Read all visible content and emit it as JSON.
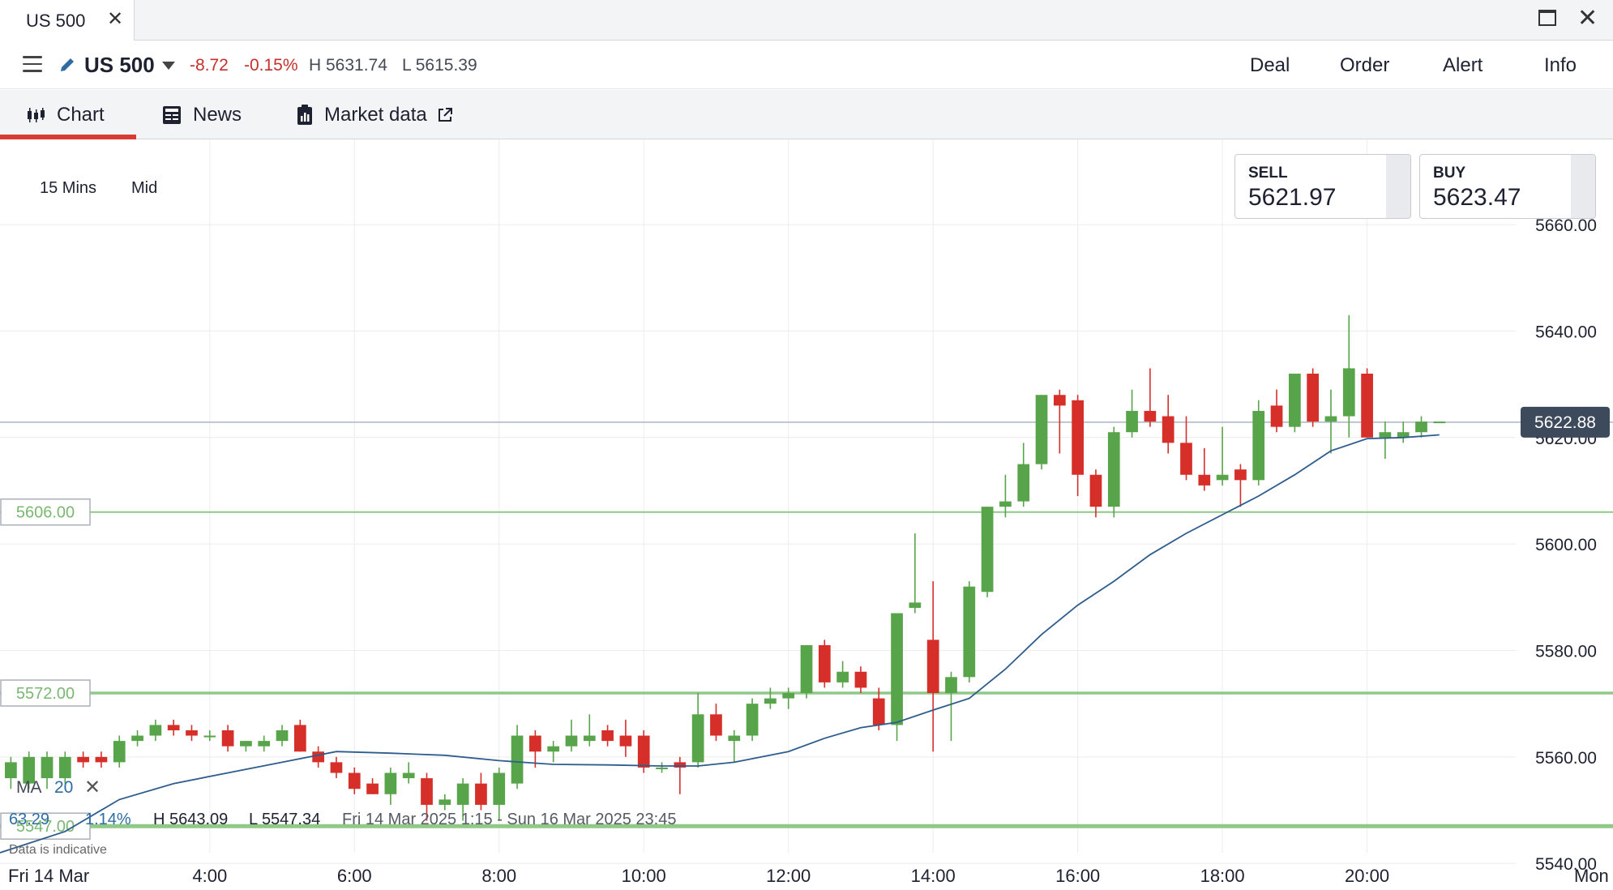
{
  "window": {
    "tab_title": "US 500",
    "close_glyph": "✕"
  },
  "header": {
    "instrument": "US 500",
    "change": "-8.72",
    "change_pct": "-0.15%",
    "high": "H 5631.74",
    "low": "L 5615.39",
    "actions": [
      "Deal",
      "Order",
      "Alert",
      "Info"
    ]
  },
  "subtabs": [
    {
      "label": "Chart",
      "icon": "candlestick-icon",
      "active": true
    },
    {
      "label": "News",
      "icon": "newspaper-icon",
      "active": false
    },
    {
      "label": "Market data",
      "icon": "clipboard-icon",
      "external_icon": "external-link-icon",
      "active": false
    }
  ],
  "toolbar": {
    "timeframe": "15 Mins",
    "price_type": "Mid"
  },
  "quotes": {
    "sell": {
      "label": "SELL",
      "price": "5621.97"
    },
    "buy": {
      "label": "BUY",
      "price": "5623.47"
    }
  },
  "indicator": {
    "label": "MA",
    "period": "20",
    "close_glyph": "✕"
  },
  "stats": {
    "value": "63.29",
    "pct": "1.14%",
    "high": "H 5643.09",
    "low": "L 5547.34",
    "range": "Fri 14 Mar 2025 1:15 - Sun 16 Mar 2025 23:45"
  },
  "disclaimer": "Data is indicative",
  "day_labels": {
    "start": "Fri 14 Mar",
    "end": "Mon"
  },
  "colors": {
    "up": "#57a44a",
    "down": "#d62f2a",
    "ma_line": "#2e5c8c",
    "level_line": "#8fc887",
    "current_tag": "#3d4a5c"
  },
  "chart_data": {
    "type": "candlestick",
    "interval": "15 Mins",
    "y_ticks": [
      "5660.00",
      "5640.00",
      "5620.00",
      "5600.00",
      "5580.00",
      "5560.00",
      "5540.00"
    ],
    "ylim": [
      5535,
      5676
    ],
    "x_ticks": [
      "4:00",
      "6:00",
      "8:00",
      "10:00",
      "12:00",
      "14:00",
      "16:00",
      "18:00",
      "20:00"
    ],
    "x_tick_hours": [
      4,
      6,
      8,
      10,
      12,
      14,
      16,
      18,
      20
    ],
    "xlim_hours": [
      1.1,
      23.4
    ],
    "current_price": "5622.88",
    "levels": [
      {
        "label": "5606.00",
        "value": 5606
      },
      {
        "label": "5572.00",
        "value": 5572
      },
      {
        "label": "5547.00",
        "value": 5547
      }
    ],
    "candles": [
      {
        "t": 1.25,
        "o": 5556,
        "h": 5560,
        "l": 5554,
        "c": 5559
      },
      {
        "t": 1.5,
        "o": 5555,
        "h": 5561,
        "l": 5554,
        "c": 5560
      },
      {
        "t": 1.75,
        "o": 5556,
        "h": 5561,
        "l": 5554,
        "c": 5560
      },
      {
        "t": 2.0,
        "o": 5556,
        "h": 5561,
        "l": 5555,
        "c": 5560
      },
      {
        "t": 2.25,
        "o": 5560,
        "h": 5561,
        "l": 5558,
        "c": 5559
      },
      {
        "t": 2.5,
        "o": 5560,
        "h": 5561,
        "l": 5558,
        "c": 5559
      },
      {
        "t": 2.75,
        "o": 5559,
        "h": 5564,
        "l": 5558,
        "c": 5563
      },
      {
        "t": 3.0,
        "o": 5563,
        "h": 5565,
        "l": 5562,
        "c": 5564
      },
      {
        "t": 3.25,
        "o": 5564,
        "h": 5567,
        "l": 5563,
        "c": 5566
      },
      {
        "t": 3.5,
        "o": 5566,
        "h": 5567,
        "l": 5564,
        "c": 5565
      },
      {
        "t": 3.75,
        "o": 5565,
        "h": 5566,
        "l": 5563,
        "c": 5564
      },
      {
        "t": 4.0,
        "o": 5564,
        "h": 5565,
        "l": 5563,
        "c": 5564
      },
      {
        "t": 4.25,
        "o": 5565,
        "h": 5566,
        "l": 5561,
        "c": 5562
      },
      {
        "t": 4.5,
        "o": 5562,
        "h": 5563,
        "l": 5561,
        "c": 5563
      },
      {
        "t": 4.75,
        "o": 5562,
        "h": 5564,
        "l": 5561,
        "c": 5563
      },
      {
        "t": 5.0,
        "o": 5563,
        "h": 5566,
        "l": 5562,
        "c": 5565
      },
      {
        "t": 5.25,
        "o": 5566,
        "h": 5567,
        "l": 5561,
        "c": 5561
      },
      {
        "t": 5.5,
        "o": 5561,
        "h": 5562,
        "l": 5558,
        "c": 5559
      },
      {
        "t": 5.75,
        "o": 5559,
        "h": 5560,
        "l": 5556,
        "c": 5557
      },
      {
        "t": 6.0,
        "o": 5557,
        "h": 5558,
        "l": 5553,
        "c": 5554
      },
      {
        "t": 6.25,
        "o": 5555,
        "h": 5556,
        "l": 5553,
        "c": 5553
      },
      {
        "t": 6.5,
        "o": 5553,
        "h": 5558,
        "l": 5551,
        "c": 5557
      },
      {
        "t": 6.75,
        "o": 5556,
        "h": 5559,
        "l": 5555,
        "c": 5557
      },
      {
        "t": 7.0,
        "o": 5556,
        "h": 5557,
        "l": 5548,
        "c": 5551
      },
      {
        "t": 7.25,
        "o": 5551,
        "h": 5553,
        "l": 5550,
        "c": 5552
      },
      {
        "t": 7.5,
        "o": 5551,
        "h": 5556,
        "l": 5548,
        "c": 5555
      },
      {
        "t": 7.75,
        "o": 5555,
        "h": 5557,
        "l": 5550,
        "c": 5551
      },
      {
        "t": 8.0,
        "o": 5551,
        "h": 5558,
        "l": 5548,
        "c": 5557
      },
      {
        "t": 8.25,
        "o": 5555,
        "h": 5566,
        "l": 5554,
        "c": 5564
      },
      {
        "t": 8.5,
        "o": 5564,
        "h": 5565,
        "l": 5558,
        "c": 5561
      },
      {
        "t": 8.75,
        "o": 5561,
        "h": 5563,
        "l": 5559,
        "c": 5562
      },
      {
        "t": 9.0,
        "o": 5562,
        "h": 5567,
        "l": 5561,
        "c": 5564
      },
      {
        "t": 9.25,
        "o": 5563,
        "h": 5568,
        "l": 5562,
        "c": 5564
      },
      {
        "t": 9.5,
        "o": 5565,
        "h": 5566,
        "l": 5562,
        "c": 5563
      },
      {
        "t": 9.75,
        "o": 5564,
        "h": 5567,
        "l": 5560,
        "c": 5562
      },
      {
        "t": 10.0,
        "o": 5564,
        "h": 5565,
        "l": 5557,
        "c": 5558
      },
      {
        "t": 10.25,
        "o": 5558,
        "h": 5559,
        "l": 5557,
        "c": 5558
      },
      {
        "t": 10.5,
        "o": 5559,
        "h": 5560,
        "l": 5553,
        "c": 5558
      },
      {
        "t": 10.75,
        "o": 5559,
        "h": 5572,
        "l": 5558,
        "c": 5568
      },
      {
        "t": 11.0,
        "o": 5568,
        "h": 5570,
        "l": 5563,
        "c": 5564
      },
      {
        "t": 11.25,
        "o": 5563,
        "h": 5565,
        "l": 5559,
        "c": 5564
      },
      {
        "t": 11.5,
        "o": 5564,
        "h": 5571,
        "l": 5563,
        "c": 5570
      },
      {
        "t": 11.75,
        "o": 5570,
        "h": 5573,
        "l": 5569,
        "c": 5571
      },
      {
        "t": 12.0,
        "o": 5571,
        "h": 5573,
        "l": 5569,
        "c": 5572
      },
      {
        "t": 12.25,
        "o": 5572,
        "h": 5581,
        "l": 5571,
        "c": 5581
      },
      {
        "t": 12.5,
        "o": 5581,
        "h": 5582,
        "l": 5573,
        "c": 5574
      },
      {
        "t": 12.75,
        "o": 5574,
        "h": 5578,
        "l": 5573,
        "c": 5576
      },
      {
        "t": 13.0,
        "o": 5576,
        "h": 5577,
        "l": 5572,
        "c": 5573
      },
      {
        "t": 13.25,
        "o": 5571,
        "h": 5573,
        "l": 5565,
        "c": 5566
      },
      {
        "t": 13.5,
        "o": 5566,
        "h": 5587,
        "l": 5563,
        "c": 5587
      },
      {
        "t": 13.75,
        "o": 5588,
        "h": 5602,
        "l": 5587,
        "c": 5589
      },
      {
        "t": 14.0,
        "o": 5582,
        "h": 5593,
        "l": 5561,
        "c": 5572
      },
      {
        "t": 14.25,
        "o": 5572,
        "h": 5576,
        "l": 5563,
        "c": 5575
      },
      {
        "t": 14.5,
        "o": 5575,
        "h": 5593,
        "l": 5574,
        "c": 5592
      },
      {
        "t": 14.75,
        "o": 5591,
        "h": 5607,
        "l": 5590,
        "c": 5607
      },
      {
        "t": 15.0,
        "o": 5607,
        "h": 5613,
        "l": 5605,
        "c": 5608
      },
      {
        "t": 15.25,
        "o": 5608,
        "h": 5619,
        "l": 5607,
        "c": 5615
      },
      {
        "t": 15.5,
        "o": 5615,
        "h": 5628,
        "l": 5614,
        "c": 5628
      },
      {
        "t": 15.75,
        "o": 5628,
        "h": 5629,
        "l": 5617,
        "c": 5626
      },
      {
        "t": 16.0,
        "o": 5627,
        "h": 5628,
        "l": 5609,
        "c": 5613
      },
      {
        "t": 16.25,
        "o": 5613,
        "h": 5614,
        "l": 5605,
        "c": 5607
      },
      {
        "t": 16.5,
        "o": 5607,
        "h": 5622,
        "l": 5605,
        "c": 5621
      },
      {
        "t": 16.75,
        "o": 5621,
        "h": 5629,
        "l": 5620,
        "c": 5625
      },
      {
        "t": 17.0,
        "o": 5625,
        "h": 5633,
        "l": 5622,
        "c": 5623
      },
      {
        "t": 17.25,
        "o": 5624,
        "h": 5628,
        "l": 5617,
        "c": 5619
      },
      {
        "t": 17.5,
        "o": 5619,
        "h": 5624,
        "l": 5612,
        "c": 5613
      },
      {
        "t": 17.75,
        "o": 5613,
        "h": 5618,
        "l": 5610,
        "c": 5611
      },
      {
        "t": 18.0,
        "o": 5612,
        "h": 5622,
        "l": 5611,
        "c": 5613
      },
      {
        "t": 18.25,
        "o": 5614,
        "h": 5615,
        "l": 5607,
        "c": 5612
      },
      {
        "t": 18.5,
        "o": 5612,
        "h": 5627,
        "l": 5611,
        "c": 5625
      },
      {
        "t": 18.75,
        "o": 5626,
        "h": 5629,
        "l": 5621,
        "c": 5622
      },
      {
        "t": 19.0,
        "o": 5622,
        "h": 5632,
        "l": 5621,
        "c": 5632
      },
      {
        "t": 19.25,
        "o": 5632,
        "h": 5633,
        "l": 5622,
        "c": 5623
      },
      {
        "t": 19.5,
        "o": 5623,
        "h": 5629,
        "l": 5617,
        "c": 5624
      },
      {
        "t": 19.75,
        "o": 5624,
        "h": 5643,
        "l": 5620,
        "c": 5633
      },
      {
        "t": 20.0,
        "o": 5632,
        "h": 5633,
        "l": 5620,
        "c": 5620
      },
      {
        "t": 20.25,
        "o": 5620,
        "h": 5623,
        "l": 5616,
        "c": 5621
      },
      {
        "t": 20.5,
        "o": 5620,
        "h": 5623,
        "l": 5619,
        "c": 5621
      },
      {
        "t": 20.75,
        "o": 5621,
        "h": 5624,
        "l": 5620,
        "c": 5623
      },
      {
        "t": 21.0,
        "o": 5623,
        "h": 5623,
        "l": 5623,
        "c": 5623
      }
    ],
    "ma": {
      "name": "MA 20",
      "points": [
        [
          1.1,
          5542
        ],
        [
          2.0,
          5546
        ],
        [
          2.75,
          5552
        ],
        [
          3.5,
          5555
        ],
        [
          4.25,
          5557
        ],
        [
          5.0,
          5559
        ],
        [
          5.75,
          5561
        ],
        [
          6.5,
          5560.7
        ],
        [
          7.25,
          5560.3
        ],
        [
          8.0,
          5559.3
        ],
        [
          8.75,
          5558.6
        ],
        [
          9.5,
          5558.5
        ],
        [
          10.25,
          5558.3
        ],
        [
          10.75,
          5558.3
        ],
        [
          11.25,
          5559
        ],
        [
          12.0,
          5561
        ],
        [
          12.5,
          5563.5
        ],
        [
          13.0,
          5565.5
        ],
        [
          13.5,
          5566.5
        ],
        [
          14.0,
          5568.8
        ],
        [
          14.5,
          5571
        ],
        [
          15.0,
          5576.5
        ],
        [
          15.5,
          5583
        ],
        [
          16.0,
          5588.5
        ],
        [
          16.5,
          5593
        ],
        [
          17.0,
          5598
        ],
        [
          17.5,
          5602
        ],
        [
          18.0,
          5605.5
        ],
        [
          18.5,
          5609
        ],
        [
          19.0,
          5613
        ],
        [
          19.5,
          5617.5
        ],
        [
          20.0,
          5619.8
        ],
        [
          20.5,
          5620
        ],
        [
          21.0,
          5620.5
        ]
      ]
    }
  }
}
